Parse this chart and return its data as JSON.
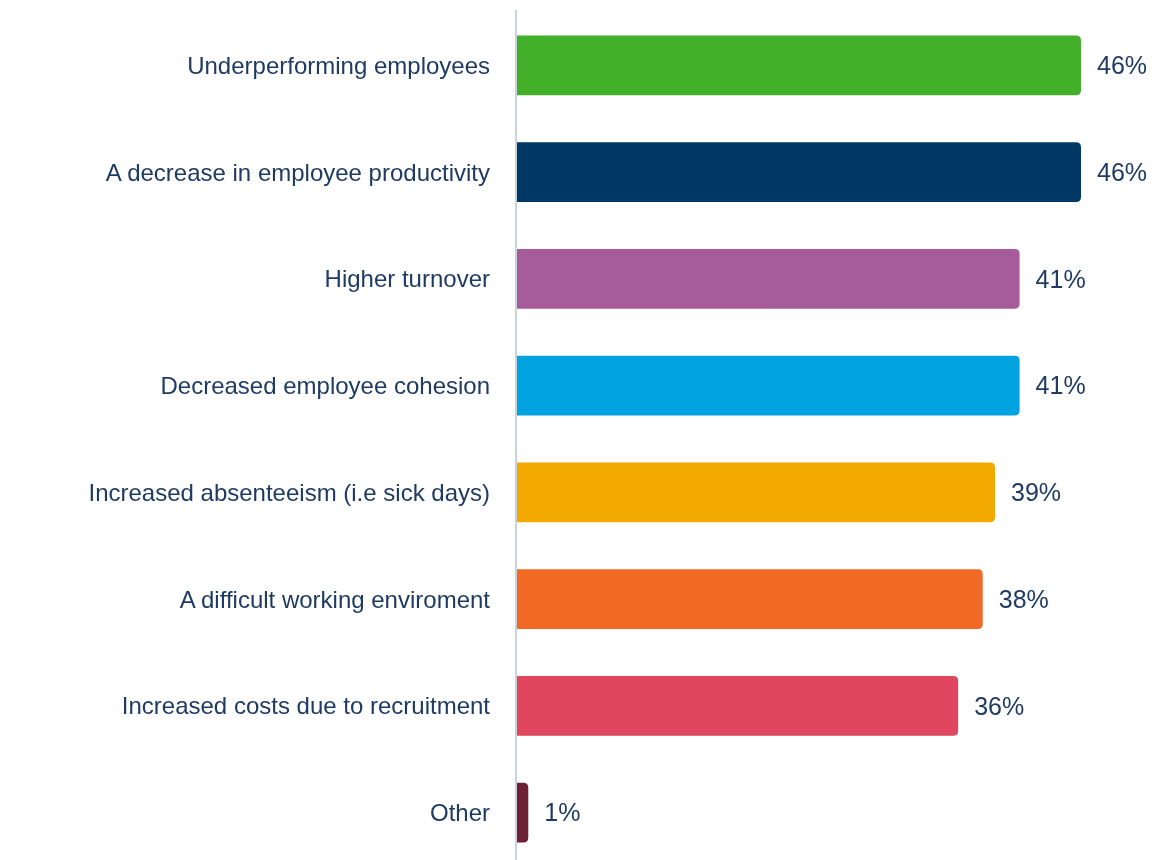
{
  "chart_data": {
    "type": "bar",
    "orientation": "horizontal",
    "categories": [
      "Underperforming employees",
      "A decrease in employee productivity",
      "Higher turnover",
      "Decreased employee cohesion",
      "Increased absenteeism (i.e sick days)",
      "A difficult working enviroment",
      "Increased costs due to recruitment",
      "Other"
    ],
    "values": [
      46,
      46,
      41,
      41,
      39,
      38,
      36,
      1
    ],
    "colors": [
      "#43b02a",
      "#003865",
      "#a65c9a",
      "#00a3e0",
      "#f2a900",
      "#f06a25",
      "#e0475f",
      "#6d2133"
    ],
    "value_labels": [
      "46%",
      "46%",
      "41%",
      "41%",
      "39%",
      "38%",
      "36%",
      "1%"
    ],
    "grid": false
  }
}
